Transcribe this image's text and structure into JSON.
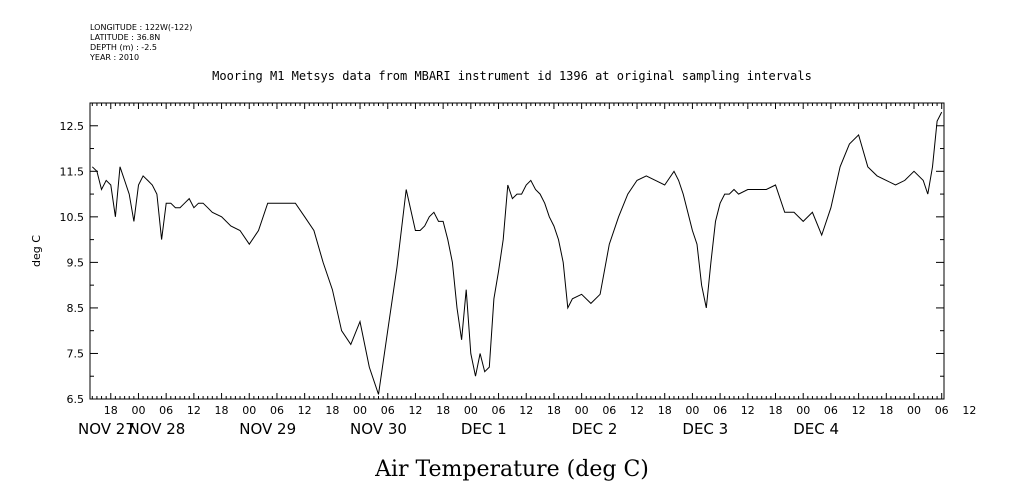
{
  "metadata": {
    "longitude": "LONGITUDE : 122W(-122)",
    "latitude": "LATITUDE : 36.8N",
    "depth": "DEPTH (m) : -2.5",
    "year": "YEAR : 2010"
  },
  "chart_data": {
    "type": "line",
    "title": "Mooring M1 Metsys data from MBARI instrument id 1396 at original sampling intervals",
    "xlabel": "Air Temperature (deg C)",
    "ylabel": "deg C",
    "ylim": [
      6.5,
      13.0
    ],
    "y_ticks": [
      "6.5",
      "7.5",
      "8.5",
      "9.5",
      "10.5",
      "11.5",
      "12.5"
    ],
    "x_unit": "hours since 2010-11-27 00:00",
    "xlim": [
      13.5,
      198.5
    ],
    "x_hour_ticks": [
      "18",
      "00",
      "06",
      "12",
      "18",
      "00",
      "06",
      "12",
      "18",
      "00",
      "06",
      "12",
      "18",
      "00",
      "06",
      "12",
      "18",
      "00",
      "06",
      "12",
      "18",
      "00",
      "06",
      "12",
      "18",
      "00",
      "06",
      "12",
      "18",
      "00",
      "06",
      "12"
    ],
    "x_day_labels": [
      "NOV 27",
      "NOV 28",
      "NOV 29",
      "NOV 30",
      "DEC  1",
      "DEC  2",
      "DEC  3",
      "DEC  4"
    ],
    "grid": false,
    "series": [
      {
        "color": "#000000",
        "x": [
          14,
          15,
          16,
          17,
          18,
          19,
          20,
          21,
          22,
          23,
          24,
          25,
          26,
          27,
          28,
          29,
          30,
          31,
          32,
          33,
          34,
          35,
          36,
          37,
          38,
          39,
          40,
          42,
          44,
          46,
          48,
          50,
          52,
          54,
          56,
          58,
          60,
          62,
          64,
          66,
          68,
          70,
          72,
          74,
          76,
          78,
          80,
          82,
          84,
          85,
          86,
          87,
          88,
          89,
          90,
          91,
          92,
          93,
          94,
          95,
          96,
          97,
          98,
          99,
          100,
          101,
          102,
          103,
          104,
          105,
          106,
          107,
          108,
          109,
          110,
          111,
          112,
          113,
          114,
          115,
          116,
          117,
          118,
          120,
          122,
          124,
          126,
          128,
          130,
          132,
          134,
          136,
          138,
          140,
          141,
          142,
          143,
          144,
          145,
          146,
          147,
          148,
          149,
          150,
          151,
          152,
          153,
          154,
          156,
          158,
          160,
          162,
          164,
          166,
          168,
          170,
          172,
          174,
          176,
          178,
          180,
          182,
          184,
          186,
          188,
          190,
          192,
          194,
          195,
          196,
          197,
          198
        ],
        "y": [
          11.6,
          11.5,
          11.1,
          11.3,
          11.2,
          10.5,
          11.6,
          11.3,
          11.0,
          10.4,
          11.2,
          11.4,
          11.3,
          11.2,
          11.0,
          10.0,
          10.8,
          10.8,
          10.7,
          10.7,
          10.8,
          10.9,
          10.7,
          10.8,
          10.8,
          10.7,
          10.6,
          10.5,
          10.3,
          10.2,
          9.9,
          10.2,
          10.8,
          10.8,
          10.8,
          10.8,
          10.5,
          10.2,
          9.5,
          8.9,
          8.0,
          7.7,
          8.2,
          7.2,
          6.6,
          8.0,
          9.4,
          11.1,
          10.2,
          10.2,
          10.3,
          10.5,
          10.6,
          10.4,
          10.4,
          10.0,
          9.5,
          8.5,
          7.8,
          8.9,
          7.5,
          7.0,
          7.5,
          7.1,
          7.2,
          8.7,
          9.3,
          10.0,
          11.2,
          10.9,
          11.0,
          11.0,
          11.2,
          11.3,
          11.1,
          11.0,
          10.8,
          10.5,
          10.3,
          10.0,
          9.5,
          8.5,
          8.7,
          8.8,
          8.6,
          8.8,
          9.9,
          10.5,
          11.0,
          11.3,
          11.4,
          11.3,
          11.2,
          11.5,
          11.3,
          11.0,
          10.6,
          10.2,
          9.9,
          9.0,
          8.5,
          9.5,
          10.4,
          10.8,
          11.0,
          11.0,
          11.1,
          11.0,
          11.1,
          11.1,
          11.1,
          11.2,
          10.6,
          10.6,
          10.4,
          10.6,
          10.1,
          10.7,
          11.6,
          12.1,
          12.3,
          11.6,
          11.4,
          11.3,
          11.2,
          11.3,
          11.5,
          11.3,
          11.0,
          11.6,
          12.6,
          12.8
        ]
      }
    ]
  }
}
